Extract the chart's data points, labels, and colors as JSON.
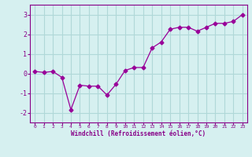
{
  "x": [
    0,
    1,
    2,
    3,
    4,
    5,
    6,
    7,
    8,
    9,
    10,
    11,
    12,
    13,
    14,
    15,
    16,
    17,
    18,
    19,
    20,
    21,
    22,
    23
  ],
  "y": [
    0.1,
    0.05,
    0.1,
    -0.2,
    -1.85,
    -0.6,
    -0.65,
    -0.65,
    -1.1,
    -0.55,
    0.15,
    0.3,
    0.3,
    1.3,
    1.6,
    2.25,
    2.35,
    2.35,
    2.15,
    2.35,
    2.55,
    2.55,
    2.65,
    3.0
  ],
  "line_color": "#990099",
  "marker": "D",
  "marker_size": 2.5,
  "bg_color": "#d6f0f0",
  "grid_color": "#b0d8d8",
  "xlabel": "Windchill (Refroidissement éolien,°C)",
  "ylim": [
    -2.5,
    3.5
  ],
  "yticks": [
    -2,
    -1,
    0,
    1,
    2,
    3
  ],
  "xlim": [
    -0.5,
    23.5
  ],
  "xticks": [
    0,
    1,
    2,
    3,
    4,
    5,
    6,
    7,
    8,
    9,
    10,
    11,
    12,
    13,
    14,
    15,
    16,
    17,
    18,
    19,
    20,
    21,
    22,
    23
  ],
  "tick_color": "#880088",
  "label_color": "#880088",
  "spine_color": "#880088",
  "xlabel_fontsize": 5.5,
  "xlabel_fontweight": "bold",
  "xtick_fontsize": 4.5,
  "ytick_fontsize": 6.0
}
